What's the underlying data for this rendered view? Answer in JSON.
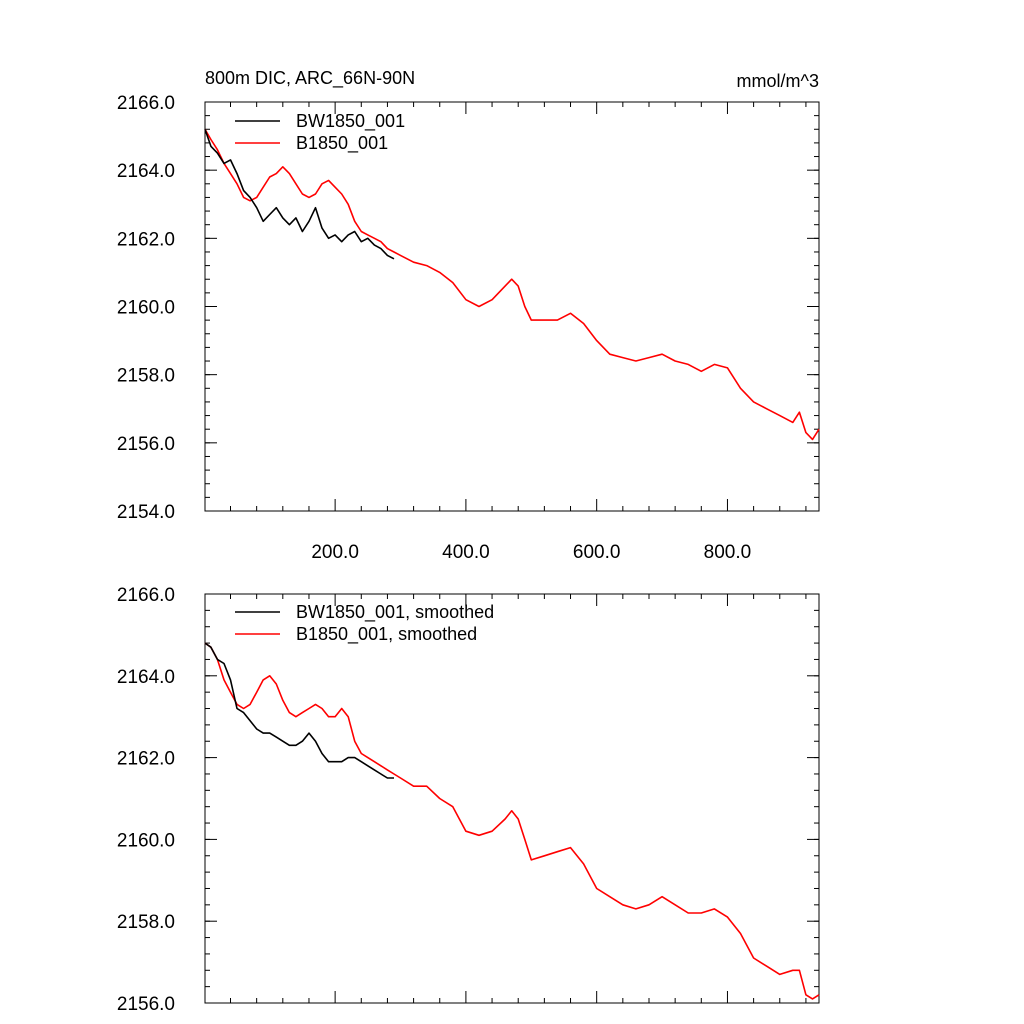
{
  "figure": {
    "title_left": "800m DIC, ARC_66N-90N",
    "units": "mmol/m^3"
  },
  "chart_data": [
    {
      "type": "line",
      "panel": "top",
      "title": "800m DIC, ARC_66N-90N",
      "units": "mmol/m^3",
      "xlim": [
        1,
        940
      ],
      "ylim": [
        2154.0,
        2166.0
      ],
      "x_ticks": [
        200,
        400,
        600,
        800
      ],
      "x_tick_labels": [
        "200.0",
        "400.0",
        "600.0",
        "800.0"
      ],
      "y_ticks": [
        2154,
        2156,
        2158,
        2160,
        2162,
        2164,
        2166
      ],
      "y_tick_labels": [
        "2154.0",
        "2156.0",
        "2158.0",
        "2160.0",
        "2162.0",
        "2164.0",
        "2166.0"
      ],
      "legend_position": "top-left",
      "series": [
        {
          "name": "BW1850_001",
          "color": "#000000",
          "x": [
            1,
            10,
            20,
            30,
            40,
            50,
            60,
            70,
            80,
            90,
            100,
            110,
            120,
            130,
            140,
            150,
            160,
            170,
            180,
            190,
            200,
            210,
            220,
            230,
            240,
            250,
            260,
            270,
            280,
            290
          ],
          "y": [
            2165.2,
            2164.7,
            2164.5,
            2164.2,
            2164.3,
            2163.9,
            2163.4,
            2163.2,
            2162.9,
            2162.5,
            2162.7,
            2162.9,
            2162.6,
            2162.4,
            2162.6,
            2162.2,
            2162.5,
            2162.9,
            2162.3,
            2162.0,
            2162.1,
            2161.9,
            2162.1,
            2162.2,
            2161.9,
            2162.0,
            2161.8,
            2161.7,
            2161.5,
            2161.4
          ]
        },
        {
          "name": "B1850_001",
          "color": "#ff0000",
          "x": [
            1,
            10,
            20,
            30,
            40,
            50,
            60,
            70,
            80,
            90,
            100,
            110,
            120,
            130,
            140,
            150,
            160,
            170,
            180,
            190,
            200,
            210,
            220,
            230,
            240,
            250,
            260,
            270,
            280,
            290,
            300,
            320,
            340,
            360,
            380,
            400,
            420,
            440,
            460,
            470,
            480,
            490,
            500,
            520,
            540,
            560,
            580,
            600,
            620,
            640,
            660,
            680,
            700,
            720,
            740,
            760,
            780,
            800,
            820,
            840,
            860,
            880,
            900,
            910,
            920,
            930,
            940
          ],
          "y": [
            2165.2,
            2164.9,
            2164.6,
            2164.2,
            2163.9,
            2163.6,
            2163.2,
            2163.1,
            2163.2,
            2163.5,
            2163.8,
            2163.9,
            2164.1,
            2163.9,
            2163.6,
            2163.3,
            2163.2,
            2163.3,
            2163.6,
            2163.7,
            2163.5,
            2163.3,
            2163.0,
            2162.5,
            2162.2,
            2162.1,
            2162.0,
            2161.9,
            2161.7,
            2161.6,
            2161.5,
            2161.3,
            2161.2,
            2161.0,
            2160.7,
            2160.2,
            2160.0,
            2160.2,
            2160.6,
            2160.8,
            2160.6,
            2160.0,
            2159.6,
            2159.6,
            2159.6,
            2159.8,
            2159.5,
            2159.0,
            2158.6,
            2158.5,
            2158.4,
            2158.5,
            2158.6,
            2158.4,
            2158.3,
            2158.1,
            2158.3,
            2158.2,
            2157.6,
            2157.2,
            2157.0,
            2156.8,
            2156.6,
            2156.9,
            2156.3,
            2156.1,
            2156.4
          ]
        }
      ]
    },
    {
      "type": "line",
      "panel": "bottom",
      "xlim": [
        1,
        940
      ],
      "ylim": [
        2156.0,
        2166.0
      ],
      "y_ticks": [
        2156,
        2158,
        2160,
        2162,
        2164,
        2166
      ],
      "y_tick_labels": [
        "2156.0",
        "2158.0",
        "2160.0",
        "2162.0",
        "2164.0",
        "2166.0"
      ],
      "legend_position": "top-left",
      "series": [
        {
          "name": "BW1850_001, smoothed",
          "color": "#000000",
          "x": [
            1,
            10,
            20,
            30,
            40,
            50,
            60,
            70,
            80,
            90,
            100,
            110,
            120,
            130,
            140,
            150,
            160,
            170,
            180,
            190,
            200,
            210,
            220,
            230,
            240,
            250,
            260,
            270,
            280,
            290
          ],
          "y": [
            2164.8,
            2164.7,
            2164.4,
            2164.3,
            2163.9,
            2163.2,
            2163.1,
            2162.9,
            2162.7,
            2162.6,
            2162.6,
            2162.5,
            2162.4,
            2162.3,
            2162.3,
            2162.4,
            2162.6,
            2162.4,
            2162.1,
            2161.9,
            2161.9,
            2161.9,
            2162.0,
            2162.0,
            2161.9,
            2161.8,
            2161.7,
            2161.6,
            2161.5,
            2161.5
          ]
        },
        {
          "name": "B1850_001, smoothed",
          "color": "#ff0000",
          "x": [
            1,
            10,
            20,
            30,
            40,
            50,
            60,
            70,
            80,
            90,
            100,
            110,
            120,
            130,
            140,
            150,
            160,
            170,
            180,
            190,
            200,
            210,
            220,
            230,
            240,
            250,
            260,
            270,
            280,
            290,
            300,
            320,
            340,
            360,
            380,
            400,
            420,
            440,
            460,
            470,
            480,
            490,
            500,
            520,
            540,
            560,
            580,
            600,
            620,
            640,
            660,
            680,
            700,
            720,
            740,
            760,
            780,
            800,
            820,
            840,
            860,
            880,
            900,
            910,
            920,
            930,
            940
          ],
          "y": [
            2164.8,
            2164.7,
            2164.4,
            2163.9,
            2163.6,
            2163.3,
            2163.2,
            2163.3,
            2163.6,
            2163.9,
            2164.0,
            2163.8,
            2163.4,
            2163.1,
            2163.0,
            2163.1,
            2163.2,
            2163.3,
            2163.2,
            2163.0,
            2163.0,
            2163.2,
            2163.0,
            2162.4,
            2162.1,
            2162.0,
            2161.9,
            2161.8,
            2161.7,
            2161.6,
            2161.5,
            2161.3,
            2161.3,
            2161.0,
            2160.8,
            2160.2,
            2160.1,
            2160.2,
            2160.5,
            2160.7,
            2160.5,
            2160.0,
            2159.5,
            2159.6,
            2159.7,
            2159.8,
            2159.4,
            2158.8,
            2158.6,
            2158.4,
            2158.3,
            2158.4,
            2158.6,
            2158.4,
            2158.2,
            2158.2,
            2158.3,
            2158.1,
            2157.7,
            2157.1,
            2156.9,
            2156.7,
            2156.8,
            2156.8,
            2156.2,
            2156.1,
            2156.2
          ]
        }
      ]
    }
  ]
}
